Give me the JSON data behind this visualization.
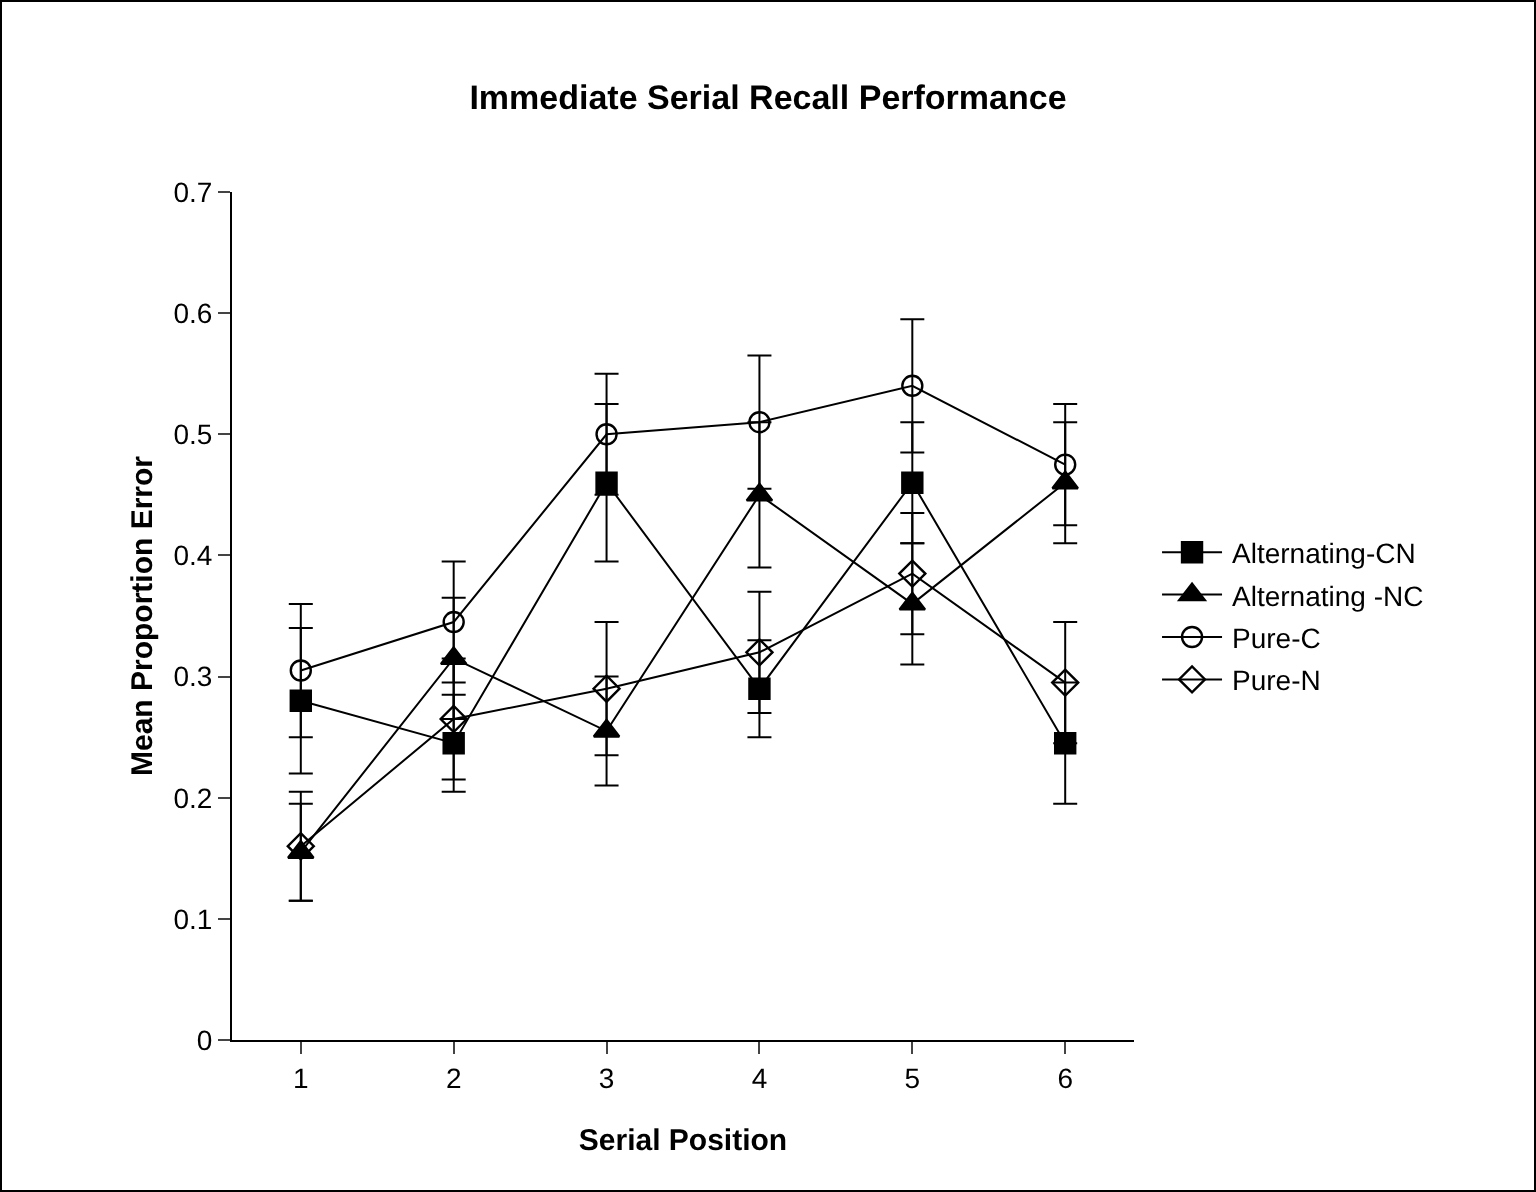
{
  "chart_data": {
    "type": "line",
    "title": "Immediate Serial Recall Performance",
    "xlabel": "Serial Position",
    "ylabel": "Mean Proportion Error",
    "categories": [
      "1",
      "2",
      "3",
      "4",
      "5",
      "6"
    ],
    "series": [
      {
        "name": "Alternating-CN",
        "color": "#000000",
        "marker": "square",
        "values": [
          0.28,
          0.245,
          0.46,
          0.29,
          0.46,
          0.245
        ],
        "errors": [
          0.06,
          0.04,
          0.065,
          0.04,
          0.05,
          0.05
        ]
      },
      {
        "name": "Alternating -NC",
        "color": "#000000",
        "marker": "triangle",
        "values": [
          0.155,
          0.315,
          0.255,
          0.45,
          0.36,
          0.46
        ],
        "errors": [
          0.04,
          0.05,
          0.045,
          0.06,
          0.05,
          0.05
        ]
      },
      {
        "name": "Pure-C",
        "color": "#000000",
        "marker": "circle",
        "values": [
          0.305,
          0.345,
          0.5,
          0.51,
          0.54,
          0.475
        ],
        "errors": [
          0.055,
          0.05,
          0.05,
          0.055,
          0.055,
          0.05
        ]
      },
      {
        "name": "Pure-N",
        "color": "#000000",
        "marker": "diamond",
        "values": [
          0.16,
          0.265,
          0.29,
          0.32,
          0.385,
          0.295
        ],
        "errors": [
          0.045,
          0.05,
          0.055,
          0.05,
          0.05,
          0.05
        ]
      }
    ],
    "ylim": [
      0,
      0.7
    ],
    "yticks": [
      0,
      0.1,
      0.2,
      0.3,
      0.4,
      0.5,
      0.6,
      0.7
    ],
    "grid": false,
    "legend": "right",
    "line_style": "solid"
  }
}
